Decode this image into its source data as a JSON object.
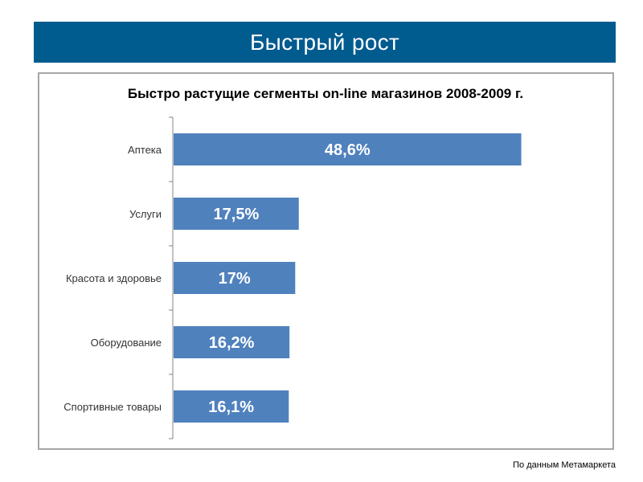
{
  "slide": {
    "title": "Быстрый рост",
    "source_note": "По данным Метамаркета"
  },
  "colors": {
    "header_bg": "#005b8f",
    "bar": "#4f81bd",
    "bar_label": "#ffffff",
    "axis": "#868686",
    "frame": "#a6a6a6"
  },
  "chart_data": {
    "type": "bar",
    "orientation": "horizontal",
    "title": "Быстро растущие сегменты on-line магазинов  2008-2009 г.",
    "categories": [
      "Аптека",
      "Услуги",
      "Красота и здоровье",
      "Оборудование",
      "Спортивные товары"
    ],
    "values": [
      48.6,
      17.5,
      17,
      16.2,
      16.1
    ],
    "value_labels": [
      "48,6%",
      "17,5%",
      "17%",
      "16,2%",
      "16,1%"
    ],
    "unit": "%",
    "xlim": [
      0,
      50
    ],
    "grid": false,
    "legend": "none"
  }
}
